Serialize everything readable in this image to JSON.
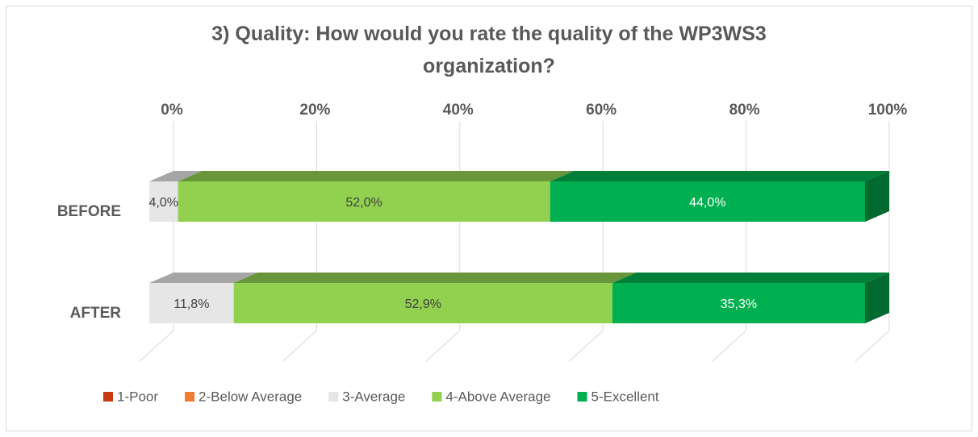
{
  "chart_data": {
    "type": "bar3d_stacked_horizontal",
    "title": "3) Quality: How would you rate the quality of the WP3WS3 organization?",
    "categories": [
      "BEFORE",
      "AFTER"
    ],
    "series": [
      {
        "name": "1-Poor",
        "color": "#c9390f",
        "values": [
          0,
          0
        ]
      },
      {
        "name": "2-Below Average",
        "color": "#ed7d31",
        "values": [
          0,
          0
        ]
      },
      {
        "name": "3-Average",
        "color": "#e7e6e6",
        "values": [
          4.0,
          11.8
        ],
        "value_labels": [
          "4,0%",
          "11,8%"
        ]
      },
      {
        "name": "4-Above Average",
        "color": "#92d050",
        "values": [
          52.0,
          52.9
        ],
        "value_labels": [
          "52,0%",
          "52,9%"
        ]
      },
      {
        "name": "5-Excellent",
        "color": "#00b050",
        "values": [
          44.0,
          35.3
        ],
        "value_labels": [
          "44,0%",
          "35,3%"
        ]
      }
    ],
    "xlim": [
      0,
      100
    ],
    "xticks": [
      {
        "value": 0,
        "label": "0%"
      },
      {
        "value": 20,
        "label": "20%"
      },
      {
        "value": 40,
        "label": "40%"
      },
      {
        "value": 60,
        "label": "60%"
      },
      {
        "value": 80,
        "label": "80%"
      },
      {
        "value": 100,
        "label": "100%"
      }
    ],
    "grid": true,
    "legend": "bottom"
  }
}
